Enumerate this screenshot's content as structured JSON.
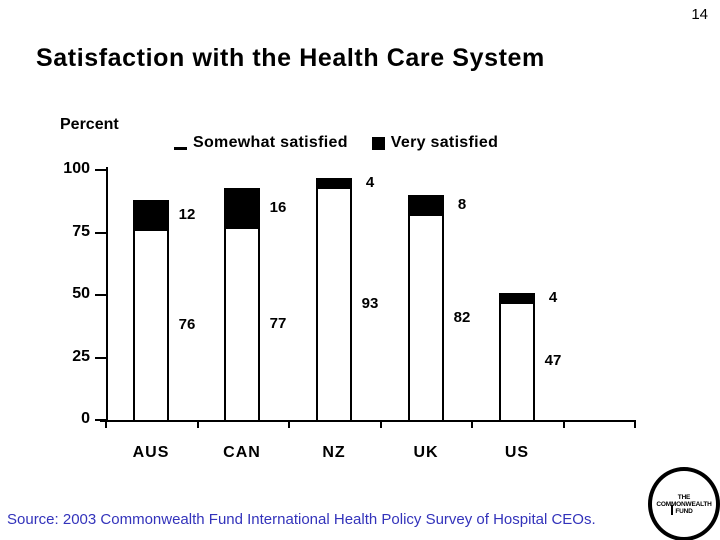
{
  "page_number": "14",
  "title": "Satisfaction with the Health Care System",
  "source": "Source: 2003 Commonwealth Fund International Health Policy Survey of Hospital CEOs.",
  "source_color": "#3333bb",
  "logo": {
    "line1": "THE",
    "line2": "COMMONWEALTH",
    "line3": "FUND"
  },
  "chart_data": {
    "type": "bar",
    "stacked": true,
    "title": "Satisfaction with the Health Care System",
    "ylabel": "Percent",
    "ylim": [
      0,
      100
    ],
    "yticks": [
      0,
      25,
      50,
      75,
      100
    ],
    "categories": [
      "AUS",
      "CAN",
      "NZ",
      "UK",
      "US"
    ],
    "series": [
      {
        "name": "Somewhat satisfied",
        "values": [
          76,
          77,
          93,
          82,
          47
        ],
        "color": "#ffffff"
      },
      {
        "name": "Very satisfied",
        "values": [
          12,
          16,
          4,
          8,
          4
        ],
        "color": "#000000"
      }
    ],
    "legend_position": "top",
    "grid": false,
    "bar_outline_color": "#000000"
  }
}
